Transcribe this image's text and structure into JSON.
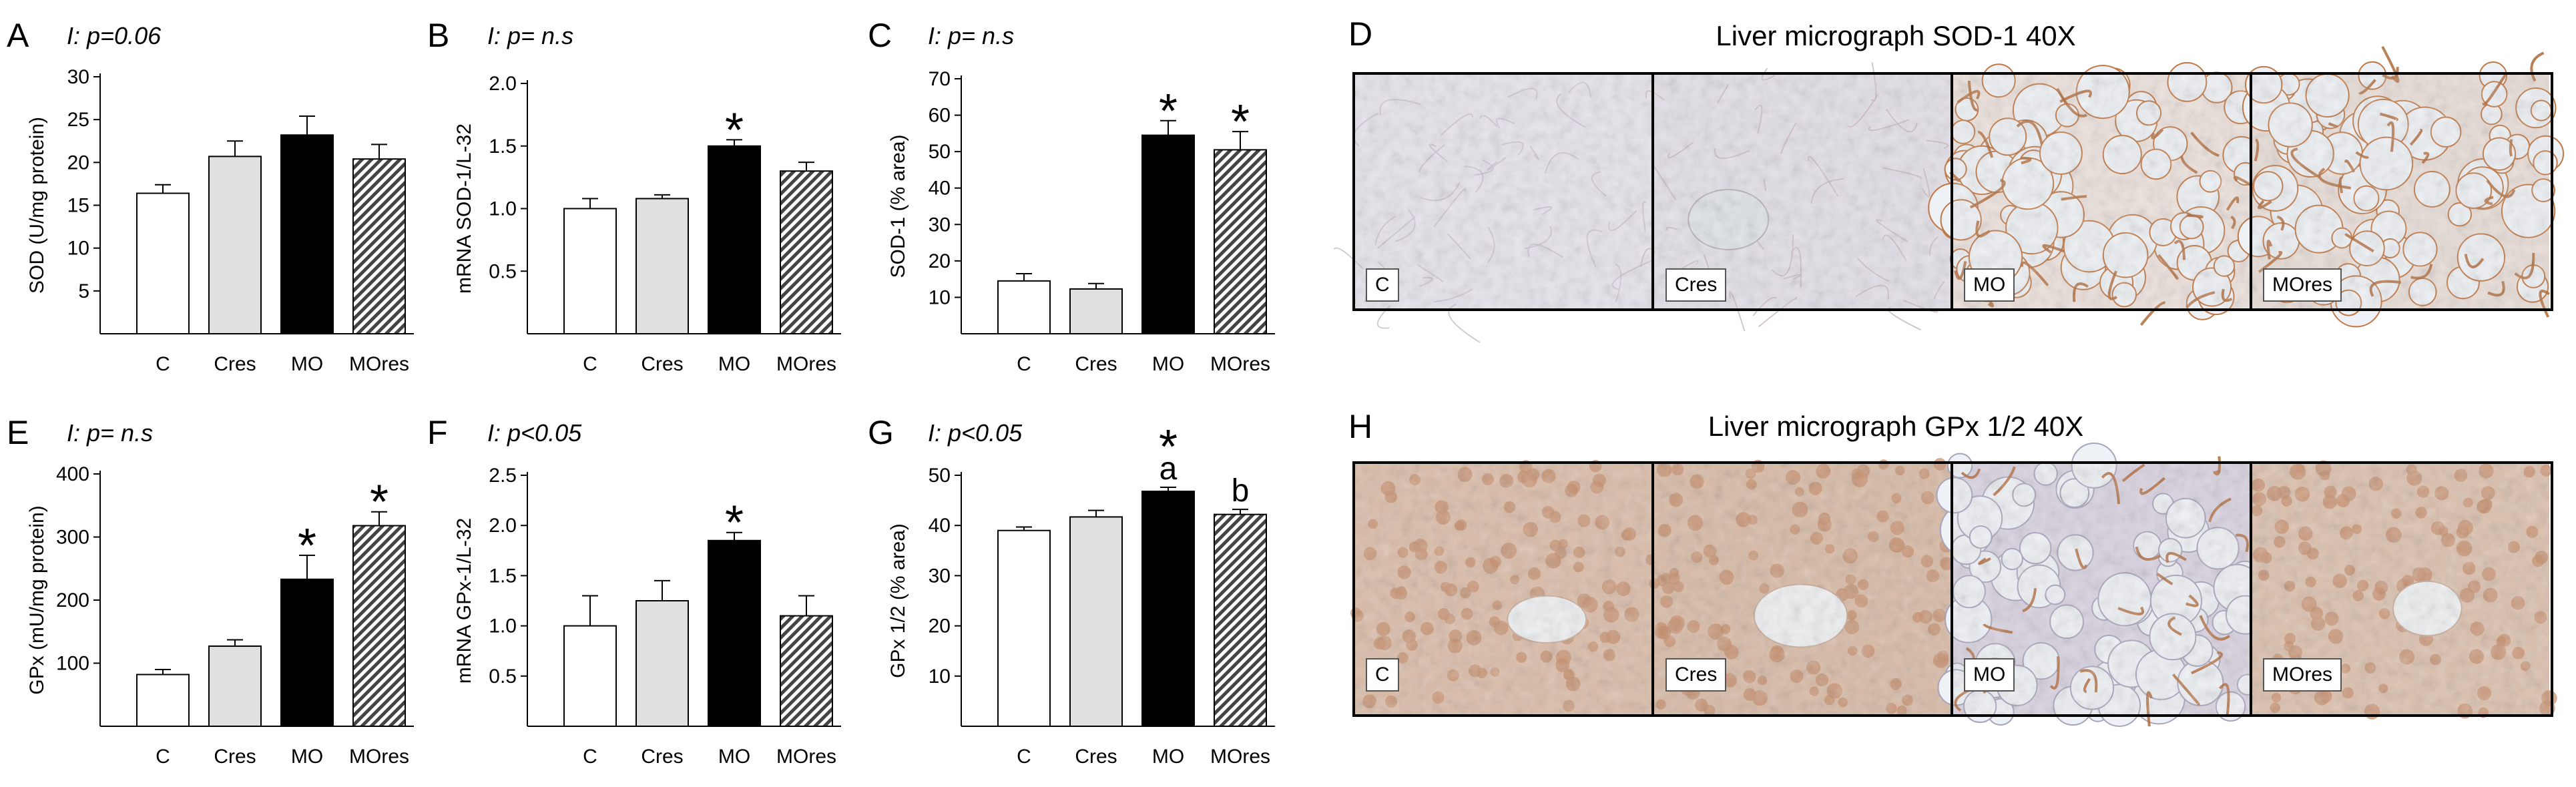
{
  "panels": [
    {
      "letter": "A",
      "pvalue": "I: p=0.06"
    },
    {
      "letter": "B",
      "pvalue": "I: p= n.s"
    },
    {
      "letter": "C",
      "pvalue": "I: p= n.s"
    },
    {
      "letter": "E",
      "pvalue": "I: p= n.s"
    },
    {
      "letter": "F",
      "pvalue": "I: p<0.05"
    },
    {
      "letter": "G",
      "pvalue": "I: p<0.05"
    }
  ],
  "chart_data": [
    {
      "type": "bar",
      "panel": "A",
      "ylabel": "SOD (U/mg protein)",
      "categories": [
        "C",
        "Cres",
        "MO",
        "MOres"
      ],
      "values": [
        16.4,
        20.7,
        23.2,
        20.4
      ],
      "errors": [
        1.0,
        1.8,
        2.2,
        1.7
      ],
      "ylim": [
        0,
        30
      ],
      "yticks": [
        "5",
        "10",
        "15",
        "20",
        "25",
        "30"
      ],
      "annotations": [
        "",
        "",
        "",
        ""
      ]
    },
    {
      "type": "bar",
      "panel": "B",
      "ylabel": "mRNA SOD-1/L-32",
      "categories": [
        "C",
        "Cres",
        "MO",
        "MOres"
      ],
      "values": [
        1.0,
        1.08,
        1.5,
        1.3
      ],
      "errors": [
        0.08,
        0.03,
        0.05,
        0.07
      ],
      "ylim": [
        0,
        2.0
      ],
      "yticks": [
        "0.5",
        "1.0",
        "1.5",
        "2.0"
      ],
      "annotations": [
        "",
        "",
        "*",
        ""
      ]
    },
    {
      "type": "bar",
      "panel": "C",
      "ylabel": "SOD-1 (% area)",
      "categories": [
        "C",
        "Cres",
        "MO",
        "MOres"
      ],
      "values": [
        14.5,
        12.3,
        54.5,
        50.5
      ],
      "errors": [
        2.0,
        1.5,
        4.0,
        5.0
      ],
      "ylim": [
        0,
        70
      ],
      "yticks": [
        "10",
        "20",
        "30",
        "40",
        "50",
        "60",
        "70"
      ],
      "annotations": [
        "",
        "",
        "*",
        "*"
      ]
    },
    {
      "type": "bar",
      "panel": "E",
      "ylabel": "GPx (mU/mg protein)",
      "categories": [
        "C",
        "Cres",
        "MO",
        "MOres"
      ],
      "values": [
        82,
        127,
        233,
        318
      ],
      "errors": [
        8,
        10,
        38,
        22
      ],
      "ylim": [
        0,
        400
      ],
      "yticks": [
        "100",
        "200",
        "300",
        "400"
      ],
      "annotations": [
        "",
        "",
        "*",
        "*"
      ]
    },
    {
      "type": "bar",
      "panel": "F",
      "ylabel": "mRNA GPx-1/L-32",
      "categories": [
        "C",
        "Cres",
        "MO",
        "MOres"
      ],
      "values": [
        1.0,
        1.25,
        1.85,
        1.1
      ],
      "errors": [
        0.3,
        0.2,
        0.08,
        0.2
      ],
      "ylim": [
        0,
        2.5
      ],
      "yticks": [
        "0.5",
        "1.0",
        "1.5",
        "2.0",
        "2.5"
      ],
      "annotations": [
        "",
        "",
        "*",
        ""
      ]
    },
    {
      "type": "bar",
      "panel": "G",
      "ylabel": "GPx 1/2 (% area)",
      "categories": [
        "C",
        "Cres",
        "MO",
        "MOres"
      ],
      "values": [
        39,
        41.7,
        46.8,
        42.2
      ],
      "errors": [
        0.7,
        1.3,
        0.8,
        1.0
      ],
      "ylim": [
        0,
        50
      ],
      "yticks": [
        "10",
        "20",
        "30",
        "40",
        "50"
      ],
      "annotations": [
        "",
        "",
        "*\na",
        "b"
      ]
    }
  ],
  "micrographs": [
    {
      "letter": "D",
      "title": "Liver micrograph SOD-1 40X",
      "labels": [
        "C",
        "Cres",
        "MO",
        "MOres"
      ]
    },
    {
      "letter": "H",
      "title": "Liver micrograph GPx 1/2 40X",
      "labels": [
        "C",
        "Cres",
        "MO",
        "MOres"
      ]
    }
  ],
  "colors": {
    "C": "#ffffff",
    "Cres": "#e0e0e0",
    "MO": "#000000",
    "MOres": "#6e6e6e",
    "tissue_sod_control": "#e8e4ee",
    "tissue_gpx_control": "#d9b9a4",
    "stain_brown": "#b06a3a"
  }
}
